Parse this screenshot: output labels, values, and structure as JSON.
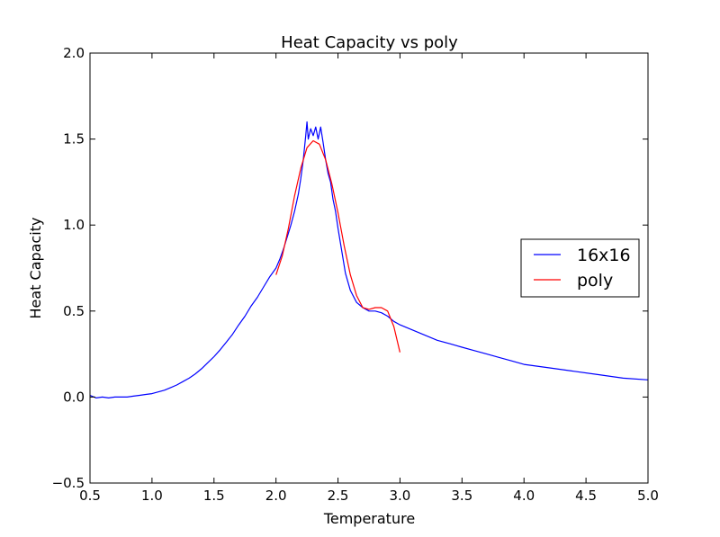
{
  "chart_data": {
    "type": "line",
    "title": "Heat Capacity vs poly",
    "xlabel": "Temperature",
    "ylabel": "Heat Capacity",
    "xlim": [
      0.5,
      5.0
    ],
    "ylim": [
      -0.5,
      2.0
    ],
    "xticks": [
      0.5,
      1.0,
      1.5,
      2.0,
      2.5,
      3.0,
      3.5,
      4.0,
      4.5,
      5.0
    ],
    "xtick_labels": [
      "0.5",
      "1.0",
      "1.5",
      "2.0",
      "2.5",
      "3.0",
      "3.5",
      "4.0",
      "4.5",
      "5.0"
    ],
    "yticks": [
      -0.5,
      0.0,
      0.5,
      1.0,
      1.5,
      2.0
    ],
    "ytick_labels": [
      "−0.5",
      "0.0",
      "0.5",
      "1.0",
      "1.5",
      "2.0"
    ],
    "grid": false,
    "legend_position": "right",
    "series": [
      {
        "name": "16x16",
        "color": "#0000ff",
        "x": [
          0.5,
          0.55,
          0.6,
          0.65,
          0.7,
          0.75,
          0.8,
          0.85,
          0.9,
          0.95,
          1.0,
          1.05,
          1.1,
          1.15,
          1.2,
          1.25,
          1.3,
          1.35,
          1.4,
          1.45,
          1.5,
          1.55,
          1.6,
          1.65,
          1.7,
          1.75,
          1.8,
          1.85,
          1.9,
          1.95,
          2.0,
          2.03,
          2.06,
          2.09,
          2.12,
          2.15,
          2.18,
          2.2,
          2.22,
          2.24,
          2.25,
          2.26,
          2.28,
          2.3,
          2.32,
          2.34,
          2.36,
          2.38,
          2.4,
          2.42,
          2.44,
          2.46,
          2.48,
          2.5,
          2.53,
          2.56,
          2.6,
          2.65,
          2.7,
          2.75,
          2.8,
          2.85,
          2.9,
          2.95,
          3.0,
          3.1,
          3.2,
          3.3,
          3.4,
          3.5,
          3.6,
          3.7,
          3.8,
          3.9,
          4.0,
          4.2,
          4.4,
          4.6,
          4.8,
          5.0
        ],
        "y": [
          0.01,
          -0.005,
          0.0,
          -0.005,
          0.0,
          0.0,
          0.0,
          0.005,
          0.01,
          0.015,
          0.02,
          0.03,
          0.04,
          0.055,
          0.07,
          0.09,
          0.11,
          0.135,
          0.165,
          0.2,
          0.235,
          0.275,
          0.32,
          0.365,
          0.42,
          0.47,
          0.53,
          0.58,
          0.64,
          0.7,
          0.75,
          0.8,
          0.86,
          0.93,
          1.0,
          1.08,
          1.18,
          1.27,
          1.38,
          1.52,
          1.6,
          1.5,
          1.56,
          1.52,
          1.57,
          1.5,
          1.57,
          1.48,
          1.38,
          1.3,
          1.25,
          1.15,
          1.08,
          0.98,
          0.85,
          0.72,
          0.62,
          0.55,
          0.52,
          0.5,
          0.5,
          0.49,
          0.47,
          0.44,
          0.42,
          0.39,
          0.36,
          0.33,
          0.31,
          0.29,
          0.27,
          0.25,
          0.23,
          0.21,
          0.19,
          0.17,
          0.15,
          0.13,
          0.11,
          0.1
        ]
      },
      {
        "name": "poly",
        "color": "#ff0000",
        "x": [
          2.0,
          2.05,
          2.1,
          2.15,
          2.2,
          2.25,
          2.3,
          2.35,
          2.4,
          2.45,
          2.5,
          2.55,
          2.6,
          2.65,
          2.7,
          2.75,
          2.8,
          2.85,
          2.9,
          2.95,
          3.0
        ],
        "y": [
          0.71,
          0.82,
          0.98,
          1.17,
          1.33,
          1.45,
          1.49,
          1.47,
          1.38,
          1.24,
          1.07,
          0.88,
          0.71,
          0.59,
          0.52,
          0.51,
          0.52,
          0.52,
          0.5,
          0.41,
          0.26
        ]
      }
    ]
  }
}
